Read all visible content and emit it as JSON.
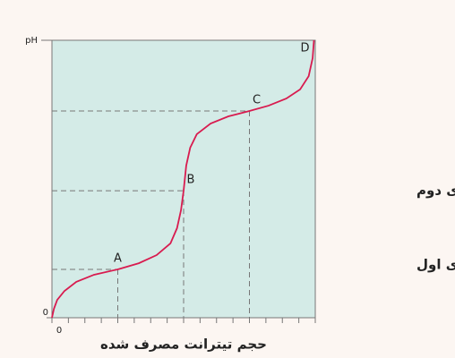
{
  "chart_data": {
    "type": "line",
    "x_label": "حجم تیترانت مصرف شده",
    "y_label": "pH",
    "xlim": [
      0,
      4
    ],
    "ylim": [
      0,
      14
    ],
    "xticks": [
      0
    ],
    "yticks": [
      0
    ],
    "minor_xticks": [
      0,
      0.25,
      0.5,
      0.75,
      1,
      1.25,
      1.5,
      1.75,
      2,
      2.25,
      2.5,
      2.75,
      3,
      3.25,
      3.5,
      3.75,
      4
    ],
    "series": [
      {
        "color": "#d81b4f",
        "x": [
          0,
          0.03,
          0.08,
          0.19,
          0.37,
          0.64,
          1.0,
          1.32,
          1.59,
          1.8,
          1.9,
          1.96,
          2.0,
          2.04,
          2.1,
          2.2,
          2.41,
          2.68,
          3.0,
          3.29,
          3.56,
          3.77,
          3.9,
          3.96,
          3.98
        ],
        "values": [
          0,
          0.45,
          0.9,
          1.35,
          1.81,
          2.17,
          2.44,
          2.75,
          3.16,
          3.75,
          4.52,
          5.42,
          6.41,
          7.68,
          8.58,
          9.26,
          9.8,
          10.16,
          10.43,
          10.7,
          11.06,
          11.52,
          12.19,
          13.1,
          14.0
        ]
      }
    ],
    "annotations": [
      {
        "text": "A",
        "x": 1.0,
        "y": 2.44
      },
      {
        "text": "B",
        "x": 2.0,
        "y": 6.41
      },
      {
        "text": "C",
        "x": 3.0,
        "y": 10.43
      }
    ],
    "end_label": {
      "text": "D",
      "x": 3.98,
      "y": 14.0
    },
    "right_labels": [
      "هم‌ارزی دوم",
      "هم‌ارزی اول"
    ],
    "background": "#d4ebe7"
  }
}
